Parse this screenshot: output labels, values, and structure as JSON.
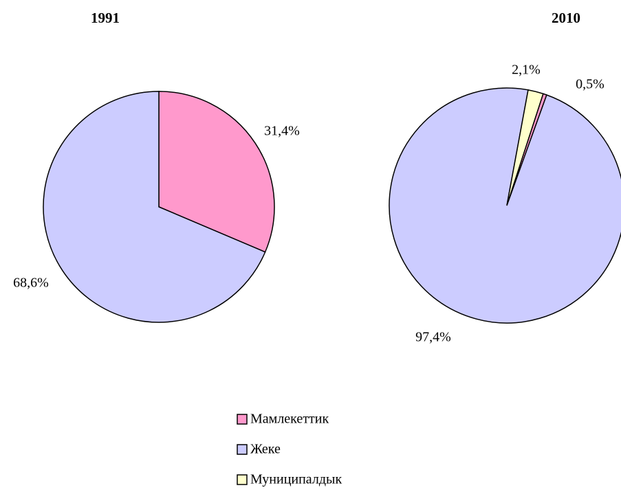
{
  "chart_data": [
    {
      "type": "pie",
      "title": "1991",
      "categories": [
        "Мамлекеттик",
        "Жеке"
      ],
      "values": [
        31.4,
        68.6
      ],
      "value_labels": [
        "31,4%",
        "68,6%"
      ],
      "colors": [
        "#ff99cc",
        "#ccccff"
      ]
    },
    {
      "type": "pie",
      "title": "2010",
      "categories": [
        "Мамлекеттик",
        "Жеке",
        "Муниципалдык"
      ],
      "values": [
        0.5,
        97.4,
        2.1
      ],
      "value_labels": [
        "0,5%",
        "97,4%",
        "2,1%"
      ],
      "colors": [
        "#ff99cc",
        "#ccccff",
        "#ffffcc"
      ]
    }
  ]
}
